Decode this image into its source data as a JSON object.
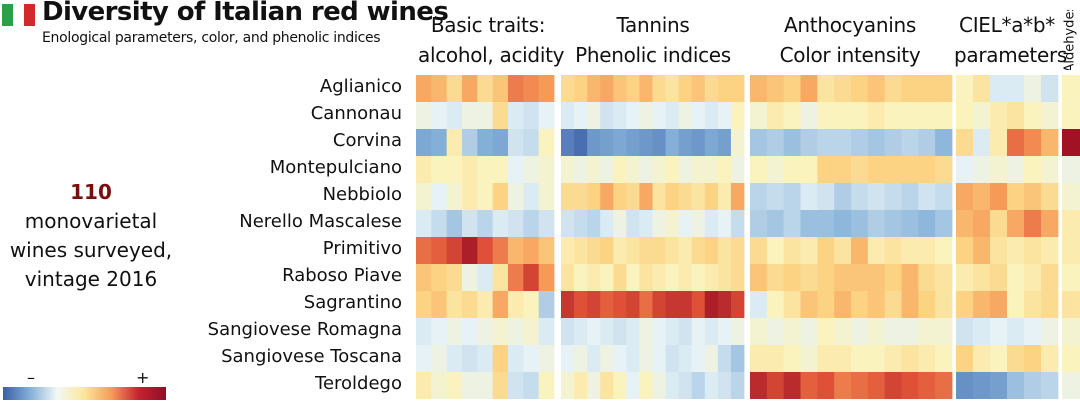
{
  "header": {
    "title": "Diversity of Italian red wines",
    "subtitle": "Enological parameters, color, and phenolic indices",
    "flag_colors": [
      "#2c9f48",
      "#ffffff",
      "#d02a2a"
    ]
  },
  "callout": {
    "count": "110",
    "line1": "monovarietal",
    "line2": "wines surveyed,",
    "line3": "vintage 2016"
  },
  "legend": {
    "minus": "–",
    "plus": "+"
  },
  "chart_data": {
    "type": "heatmap",
    "title": "Diversity of Italian red wines",
    "scale": "standardized value, -2 (blue, low) to +2 (red, high)",
    "groups": [
      {
        "line1": "Basic traits:",
        "line2": "alcohol, acidity",
        "columns": 9
      },
      {
        "line1": "Tannins",
        "line2": "Phenolic indices",
        "columns": 14
      },
      {
        "line1": "Anthocyanins",
        "line2": "Color intensity",
        "columns": 12
      },
      {
        "line1": "CIEL*a*b*",
        "line2": "parameters",
        "columns": 6
      },
      {
        "line1": "Aldehydes",
        "line2": "",
        "columns": 1
      }
    ],
    "rows": [
      "Aglianico",
      "Cannonau",
      "Corvina",
      "Montepulciano",
      "Nebbiolo",
      "Nerello Mascalese",
      "Primitivo",
      "Raboso Piave",
      "Sagrantino",
      "Sangiovese Romagna",
      "Sangiovese Toscana",
      "Teroldego"
    ],
    "values": [
      [
        0.9,
        0.8,
        0.5,
        0.9,
        0.5,
        0.7,
        1.2,
        1.1,
        1.0,
        0.5,
        0.6,
        0.8,
        0.9,
        0.7,
        0.6,
        0.8,
        0.5,
        0.4,
        0.6,
        0.7,
        0.5,
        0.6,
        0.6,
        0.8,
        0.7,
        0.6,
        0.9,
        0.4,
        0.5,
        0.6,
        0.7,
        0.5,
        0.6,
        0.6,
        0.6,
        0.2,
        0.4,
        -0.2,
        -0.2,
        0.0,
        -0.3,
        0.2
      ],
      [
        0.0,
        -0.1,
        -0.2,
        0.0,
        0.0,
        0.5,
        -0.2,
        -0.3,
        -0.1,
        -0.2,
        -0.1,
        0.0,
        -0.3,
        -0.2,
        -0.1,
        0.0,
        -0.1,
        -0.2,
        0.0,
        -0.1,
        -0.2,
        -0.1,
        0.2,
        0.1,
        0.3,
        0.2,
        0.0,
        0.2,
        0.2,
        0.2,
        0.3,
        0.2,
        0.2,
        0.2,
        0.2,
        0.2,
        0.1,
        0.3,
        0.4,
        0.2,
        0.1,
        0.2
      ],
      [
        -1.1,
        -1.0,
        0.3,
        -0.6,
        -1.0,
        -1.1,
        -0.3,
        -0.4,
        0.2,
        -1.6,
        -1.8,
        -1.3,
        -1.2,
        -1.1,
        -1.2,
        -1.3,
        -1.4,
        -1.0,
        -1.2,
        -1.3,
        -1.1,
        -1.2,
        0.1,
        -0.7,
        -0.6,
        -0.8,
        -0.6,
        -0.5,
        -0.5,
        -0.6,
        -0.7,
        -0.6,
        -0.5,
        -0.6,
        -0.9,
        0.5,
        -0.2,
        0.3,
        1.3,
        1.1,
        0.8,
        2.0
      ],
      [
        0.3,
        0.2,
        0.2,
        0.3,
        0.2,
        0.2,
        -0.1,
        0.0,
        0.1,
        0.1,
        0.0,
        0.1,
        0.0,
        0.2,
        0.1,
        0.0,
        0.1,
        0.2,
        0.0,
        0.1,
        0.1,
        0.2,
        0.0,
        0.2,
        0.1,
        0.2,
        0.2,
        0.6,
        0.6,
        0.5,
        0.6,
        0.6,
        0.6,
        0.6,
        0.5,
        -0.1,
        0.0,
        0.1,
        0.0,
        0.2,
        0.1,
        0.0
      ],
      [
        0.1,
        -0.1,
        0.1,
        0.3,
        0.2,
        0.6,
        0.0,
        -0.2,
        0.1,
        0.5,
        0.5,
        0.6,
        0.9,
        0.6,
        0.5,
        0.9,
        0.4,
        0.6,
        0.5,
        0.4,
        0.6,
        0.3,
        0.9,
        -0.5,
        -0.4,
        -0.5,
        -0.2,
        -0.3,
        -0.6,
        -0.4,
        -0.3,
        -0.4,
        -0.5,
        -0.3,
        -0.4,
        0.9,
        0.8,
        1.0,
        0.6,
        0.7,
        0.5,
        0.1
      ],
      [
        -0.2,
        -0.4,
        -0.7,
        -0.3,
        -0.5,
        -0.2,
        -0.3,
        -0.5,
        -0.3,
        -0.3,
        -0.4,
        -0.5,
        -0.2,
        0.0,
        -0.3,
        -0.2,
        0.0,
        0.1,
        -0.1,
        0.0,
        -0.2,
        -0.1,
        -0.4,
        -0.6,
        -0.7,
        -0.5,
        -0.8,
        -0.8,
        -0.9,
        -0.8,
        -0.6,
        -0.7,
        -0.8,
        -0.9,
        -0.7,
        0.8,
        0.9,
        0.5,
        0.9,
        1.2,
        0.9,
        0.3
      ],
      [
        1.3,
        1.4,
        1.6,
        1.9,
        1.5,
        1.2,
        0.8,
        0.9,
        0.7,
        0.3,
        0.4,
        0.5,
        0.6,
        0.3,
        0.4,
        0.5,
        0.5,
        0.4,
        0.3,
        0.5,
        0.6,
        0.4,
        0.5,
        0.5,
        0.2,
        0.4,
        0.3,
        0.6,
        0.4,
        0.8,
        0.3,
        0.4,
        0.3,
        0.3,
        0.2,
        0.6,
        0.8,
        0.4,
        0.3,
        0.4,
        0.3,
        0.3
      ],
      [
        0.7,
        0.6,
        0.5,
        0.0,
        -0.2,
        0.4,
        1.2,
        1.6,
        1.0,
        0.4,
        0.2,
        0.3,
        0.2,
        0.5,
        0.2,
        0.4,
        0.3,
        0.2,
        0.3,
        0.2,
        0.3,
        0.4,
        0.5,
        0.7,
        0.5,
        0.6,
        0.5,
        0.6,
        0.7,
        0.7,
        0.7,
        0.6,
        0.8,
        0.5,
        0.4,
        0.3,
        0.4,
        0.5,
        0.2,
        0.3,
        0.5,
        0.2
      ],
      [
        0.6,
        0.7,
        0.4,
        0.5,
        0.3,
        0.9,
        0.3,
        0.2,
        -0.6,
        1.7,
        1.5,
        1.6,
        1.4,
        1.5,
        1.6,
        1.3,
        1.6,
        1.7,
        1.7,
        1.5,
        1.9,
        1.8,
        1.6,
        -0.2,
        0.2,
        0.4,
        0.7,
        0.6,
        0.8,
        0.6,
        0.7,
        0.5,
        0.8,
        0.6,
        0.4,
        0.6,
        0.8,
        0.9,
        0.2,
        0.4,
        0.5,
        0.4
      ],
      [
        -0.2,
        -0.1,
        0.0,
        -0.1,
        0.0,
        0.1,
        0.0,
        0.1,
        -0.2,
        -0.3,
        -0.2,
        -0.1,
        -0.2,
        -0.3,
        -0.2,
        0.0,
        -0.1,
        -0.2,
        -0.3,
        -0.1,
        -0.2,
        -0.1,
        0.0,
        0.1,
        0.0,
        0.1,
        0.0,
        0.2,
        0.1,
        0.0,
        0.1,
        0.0,
        0.0,
        0.1,
        0.1,
        -0.3,
        -0.2,
        -0.1,
        -0.2,
        -0.1,
        0.0,
        0.1
      ],
      [
        -0.1,
        0.0,
        -0.2,
        -0.3,
        -0.2,
        0.6,
        -0.2,
        -0.1,
        0.0,
        -0.1,
        0.0,
        -0.2,
        0.0,
        -0.1,
        -0.2,
        0.0,
        -0.1,
        -0.3,
        -0.2,
        -0.1,
        0.0,
        -0.4,
        -0.7,
        0.3,
        0.3,
        0.2,
        0.1,
        0.3,
        0.3,
        0.2,
        0.2,
        0.3,
        0.4,
        0.3,
        0.2,
        0.6,
        0.3,
        0.2,
        0.5,
        0.6,
        0.3,
        0.2
      ],
      [
        0.3,
        0.1,
        0.2,
        0.0,
        0.0,
        0.5,
        -0.3,
        -0.4,
        0.2,
        0.1,
        0.3,
        0.0,
        0.4,
        0.2,
        -0.1,
        0.2,
        0.0,
        -0.2,
        -0.3,
        -0.5,
        -0.2,
        -0.3,
        -0.5,
        1.8,
        1.6,
        1.8,
        1.4,
        1.5,
        1.2,
        1.3,
        1.4,
        1.6,
        1.5,
        1.4,
        1.3,
        -1.4,
        -1.3,
        -1.2,
        -0.8,
        -0.6,
        -0.5,
        0.0
      ]
    ]
  }
}
